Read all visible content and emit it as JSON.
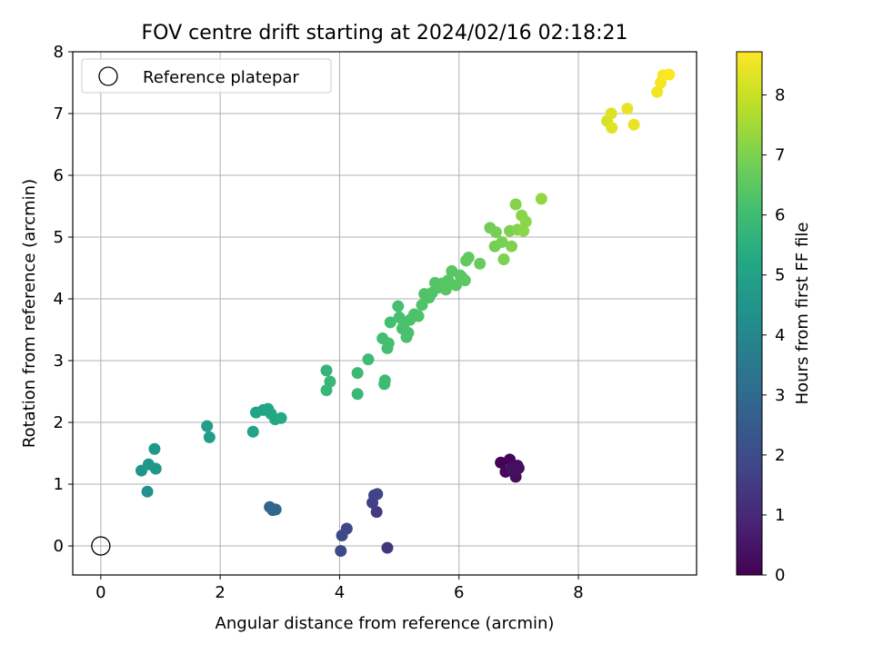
{
  "chart_data": {
    "type": "scatter",
    "title": "FOV centre drift starting at 2024/02/16 02:18:21",
    "xlabel": "Angular distance from reference (arcmin)",
    "ylabel": "Rotation from reference (arcmin)",
    "xlim": [
      -0.47,
      9.98
    ],
    "ylim": [
      -0.47,
      8.0
    ],
    "xticks": [
      0,
      2,
      4,
      6,
      8
    ],
    "yticks": [
      0,
      1,
      2,
      3,
      4,
      5,
      6,
      7,
      8
    ],
    "grid": true,
    "legend": {
      "placement": "top-left",
      "entries": [
        "Reference platepar"
      ]
    },
    "reference_point": {
      "x": 0,
      "y": 0
    },
    "colorbar": {
      "label": "Hours from first FF file",
      "colormap": "viridis",
      "range": [
        0,
        8.72
      ],
      "ticks": [
        0,
        1,
        2,
        3,
        4,
        5,
        6,
        7,
        8
      ]
    },
    "points": [
      {
        "x": 6.7,
        "y": 1.35,
        "h": 0.05
      },
      {
        "x": 6.85,
        "y": 1.4,
        "h": 0.1
      },
      {
        "x": 6.78,
        "y": 1.2,
        "h": 0.15
      },
      {
        "x": 6.92,
        "y": 1.28,
        "h": 0.2
      },
      {
        "x": 6.98,
        "y": 1.3,
        "h": 0.25
      },
      {
        "x": 6.95,
        "y": 1.12,
        "h": 0.3
      },
      {
        "x": 7.0,
        "y": 1.26,
        "h": 0.35
      },
      {
        "x": 6.87,
        "y": 1.25,
        "h": 0.4
      },
      {
        "x": 4.8,
        "y": -0.03,
        "h": 1.3
      },
      {
        "x": 4.62,
        "y": 0.55,
        "h": 1.5
      },
      {
        "x": 4.55,
        "y": 0.7,
        "h": 1.6
      },
      {
        "x": 4.58,
        "y": 0.82,
        "h": 1.7
      },
      {
        "x": 4.63,
        "y": 0.84,
        "h": 1.75
      },
      {
        "x": 4.12,
        "y": 0.28,
        "h": 1.85
      },
      {
        "x": 4.04,
        "y": 0.17,
        "h": 1.95
      },
      {
        "x": 4.02,
        "y": -0.08,
        "h": 2.0
      },
      {
        "x": 2.83,
        "y": 0.63,
        "h": 2.8
      },
      {
        "x": 2.88,
        "y": 0.58,
        "h": 2.85
      },
      {
        "x": 2.93,
        "y": 0.59,
        "h": 2.9
      },
      {
        "x": 0.78,
        "y": 0.88,
        "h": 4.4
      },
      {
        "x": 0.68,
        "y": 1.22,
        "h": 4.5
      },
      {
        "x": 0.8,
        "y": 1.32,
        "h": 4.55
      },
      {
        "x": 0.92,
        "y": 1.25,
        "h": 4.6
      },
      {
        "x": 0.9,
        "y": 1.57,
        "h": 4.65
      },
      {
        "x": 1.78,
        "y": 1.94,
        "h": 4.8
      },
      {
        "x": 1.82,
        "y": 1.76,
        "h": 4.85
      },
      {
        "x": 2.55,
        "y": 1.85,
        "h": 5.0
      },
      {
        "x": 2.6,
        "y": 2.16,
        "h": 5.05
      },
      {
        "x": 2.72,
        "y": 2.2,
        "h": 5.1
      },
      {
        "x": 2.8,
        "y": 2.22,
        "h": 5.15
      },
      {
        "x": 2.85,
        "y": 2.14,
        "h": 5.2
      },
      {
        "x": 2.92,
        "y": 2.05,
        "h": 5.25
      },
      {
        "x": 3.02,
        "y": 2.07,
        "h": 5.3
      },
      {
        "x": 3.78,
        "y": 2.84,
        "h": 5.7
      },
      {
        "x": 3.78,
        "y": 2.52,
        "h": 5.75
      },
      {
        "x": 3.84,
        "y": 2.66,
        "h": 5.8
      },
      {
        "x": 4.3,
        "y": 2.46,
        "h": 5.85
      },
      {
        "x": 4.3,
        "y": 2.8,
        "h": 5.9
      },
      {
        "x": 4.48,
        "y": 3.02,
        "h": 5.95
      },
      {
        "x": 4.75,
        "y": 2.62,
        "h": 6.0
      },
      {
        "x": 4.76,
        "y": 2.68,
        "h": 6.0
      },
      {
        "x": 4.72,
        "y": 3.36,
        "h": 6.05
      },
      {
        "x": 4.8,
        "y": 3.2,
        "h": 6.05
      },
      {
        "x": 4.82,
        "y": 3.28,
        "h": 6.1
      },
      {
        "x": 4.85,
        "y": 3.62,
        "h": 6.1
      },
      {
        "x": 4.98,
        "y": 3.88,
        "h": 6.12
      },
      {
        "x": 5.0,
        "y": 3.7,
        "h": 6.15
      },
      {
        "x": 5.05,
        "y": 3.52,
        "h": 6.15
      },
      {
        "x": 5.08,
        "y": 3.6,
        "h": 6.18
      },
      {
        "x": 5.12,
        "y": 3.38,
        "h": 6.2
      },
      {
        "x": 5.15,
        "y": 3.45,
        "h": 6.2
      },
      {
        "x": 5.18,
        "y": 3.66,
        "h": 6.22
      },
      {
        "x": 5.25,
        "y": 3.75,
        "h": 6.25
      },
      {
        "x": 5.32,
        "y": 3.72,
        "h": 6.25
      },
      {
        "x": 5.38,
        "y": 3.9,
        "h": 6.28
      },
      {
        "x": 5.42,
        "y": 4.08,
        "h": 6.3
      },
      {
        "x": 5.5,
        "y": 4.02,
        "h": 6.3
      },
      {
        "x": 5.55,
        "y": 4.1,
        "h": 6.32
      },
      {
        "x": 5.6,
        "y": 4.26,
        "h": 6.35
      },
      {
        "x": 5.65,
        "y": 4.18,
        "h": 6.35
      },
      {
        "x": 5.72,
        "y": 4.25,
        "h": 6.38
      },
      {
        "x": 5.78,
        "y": 4.15,
        "h": 6.4
      },
      {
        "x": 5.82,
        "y": 4.3,
        "h": 6.4
      },
      {
        "x": 5.88,
        "y": 4.45,
        "h": 6.42
      },
      {
        "x": 5.95,
        "y": 4.22,
        "h": 6.45
      },
      {
        "x": 6.02,
        "y": 4.38,
        "h": 6.45
      },
      {
        "x": 6.05,
        "y": 4.35,
        "h": 6.48
      },
      {
        "x": 6.1,
        "y": 4.3,
        "h": 6.5
      },
      {
        "x": 6.12,
        "y": 4.62,
        "h": 6.55
      },
      {
        "x": 6.16,
        "y": 4.67,
        "h": 6.6
      },
      {
        "x": 6.35,
        "y": 4.57,
        "h": 6.7
      },
      {
        "x": 6.52,
        "y": 5.15,
        "h": 6.8
      },
      {
        "x": 6.6,
        "y": 4.85,
        "h": 6.85
      },
      {
        "x": 6.62,
        "y": 5.08,
        "h": 6.9
      },
      {
        "x": 6.72,
        "y": 4.92,
        "h": 6.95
      },
      {
        "x": 6.75,
        "y": 4.64,
        "h": 7.0
      },
      {
        "x": 6.85,
        "y": 5.1,
        "h": 7.0
      },
      {
        "x": 6.88,
        "y": 4.85,
        "h": 7.05
      },
      {
        "x": 6.95,
        "y": 5.53,
        "h": 7.1
      },
      {
        "x": 6.98,
        "y": 5.12,
        "h": 7.1
      },
      {
        "x": 7.05,
        "y": 5.35,
        "h": 7.15
      },
      {
        "x": 7.08,
        "y": 5.1,
        "h": 7.2
      },
      {
        "x": 7.12,
        "y": 5.25,
        "h": 7.2
      },
      {
        "x": 7.38,
        "y": 5.62,
        "h": 7.3
      },
      {
        "x": 8.48,
        "y": 6.88,
        "h": 8.2
      },
      {
        "x": 8.55,
        "y": 7.0,
        "h": 8.25
      },
      {
        "x": 8.56,
        "y": 6.77,
        "h": 8.3
      },
      {
        "x": 8.82,
        "y": 7.08,
        "h": 8.4
      },
      {
        "x": 8.93,
        "y": 6.82,
        "h": 8.45
      },
      {
        "x": 9.32,
        "y": 7.35,
        "h": 8.55
      },
      {
        "x": 9.38,
        "y": 7.5,
        "h": 8.6
      },
      {
        "x": 9.42,
        "y": 7.62,
        "h": 8.65
      },
      {
        "x": 9.52,
        "y": 7.63,
        "h": 8.7
      }
    ]
  }
}
